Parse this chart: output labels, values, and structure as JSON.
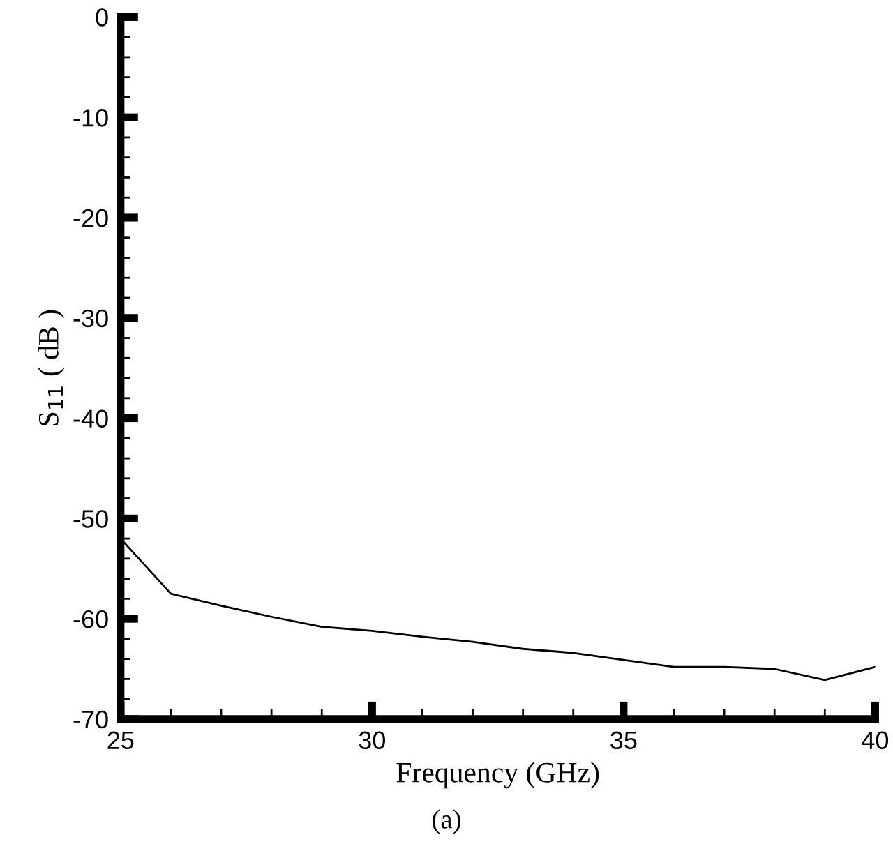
{
  "chart_data": {
    "type": "line",
    "xlabel": "Frequency (GHz)",
    "ylabel": "S$_{11}$ ( dB )",
    "x": [
      25,
      26,
      27,
      28,
      29,
      30,
      31,
      32,
      33,
      34,
      35,
      36,
      37,
      38,
      39,
      40
    ],
    "series": [
      {
        "color": "#000000",
        "values": [
          -52,
          -57.5,
          -58.7,
          -59.8,
          -60.8,
          -61.2,
          -61.8,
          -62.3,
          -63,
          -63.4,
          -64.1,
          -64.8,
          -64.8,
          -65,
          -66.1,
          -64.8
        ]
      }
    ],
    "xlim": [
      25,
      40
    ],
    "xticks": [
      25,
      30,
      35,
      40
    ],
    "ylim": [
      -70,
      0
    ],
    "yticks": [
      -70,
      -60,
      -50,
      -40,
      -30,
      -20,
      -10,
      0
    ],
    "grid": false,
    "legend": false,
    "marker": "none",
    "line_style": "solid",
    "annotations": [
      "(a)"
    ]
  }
}
